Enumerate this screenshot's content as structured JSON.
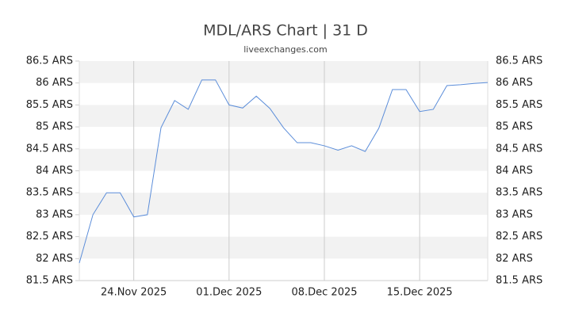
{
  "chart_data": {
    "type": "line",
    "title": "MDL/ARS Chart | 31 D",
    "subtitle": "liveexchanges.com",
    "x": [
      "2025-11-20",
      "2025-11-21",
      "2025-11-22",
      "2025-11-23",
      "2025-11-24",
      "2025-11-25",
      "2025-11-26",
      "2025-11-27",
      "2025-11-28",
      "2025-11-29",
      "2025-11-30",
      "2025-12-01",
      "2025-12-02",
      "2025-12-03",
      "2025-12-04",
      "2025-12-05",
      "2025-12-06",
      "2025-12-07",
      "2025-12-08",
      "2025-12-09",
      "2025-12-10",
      "2025-12-11",
      "2025-12-12",
      "2025-12-13",
      "2025-12-14",
      "2025-12-15",
      "2025-12-16",
      "2025-12-17",
      "2025-12-18",
      "2025-12-19",
      "2025-12-20"
    ],
    "series": [
      {
        "name": "MDL/ARS",
        "color": "#5b8dd9",
        "values": [
          81.9,
          83.0,
          83.5,
          83.5,
          82.95,
          83.0,
          84.98,
          85.6,
          85.4,
          86.07,
          86.07,
          85.5,
          85.43,
          85.7,
          85.42,
          84.98,
          84.64,
          84.64,
          84.57,
          84.47,
          84.57,
          84.44,
          84.97,
          85.85,
          85.85,
          85.35,
          85.4,
          85.94,
          85.96,
          85.99,
          86.01
        ]
      }
    ],
    "xlim": [
      "2025-11-20",
      "2025-12-20"
    ],
    "xticks": [
      {
        "value": "2025-11-24",
        "label": "24.Nov 2025"
      },
      {
        "value": "2025-12-01",
        "label": "01.Dec 2025"
      },
      {
        "value": "2025-12-08",
        "label": "08.Dec 2025"
      },
      {
        "value": "2025-12-15",
        "label": "15.Dec 2025"
      }
    ],
    "ylim": [
      81.5,
      86.5
    ],
    "yticks": [
      {
        "value": 81.5,
        "label": "81.5 ARS"
      },
      {
        "value": 82,
        "label": "82 ARS"
      },
      {
        "value": 82.5,
        "label": "82.5 ARS"
      },
      {
        "value": 83,
        "label": "83 ARS"
      },
      {
        "value": 83.5,
        "label": "83.5 ARS"
      },
      {
        "value": 84,
        "label": "84 ARS"
      },
      {
        "value": 84.5,
        "label": "84.5 ARS"
      },
      {
        "value": 85,
        "label": "85 ARS"
      },
      {
        "value": 85.5,
        "label": "85.5 ARS"
      },
      {
        "value": 86,
        "label": "86 ARS"
      },
      {
        "value": 86.5,
        "label": "86.5 ARS"
      }
    ],
    "grid": true
  }
}
